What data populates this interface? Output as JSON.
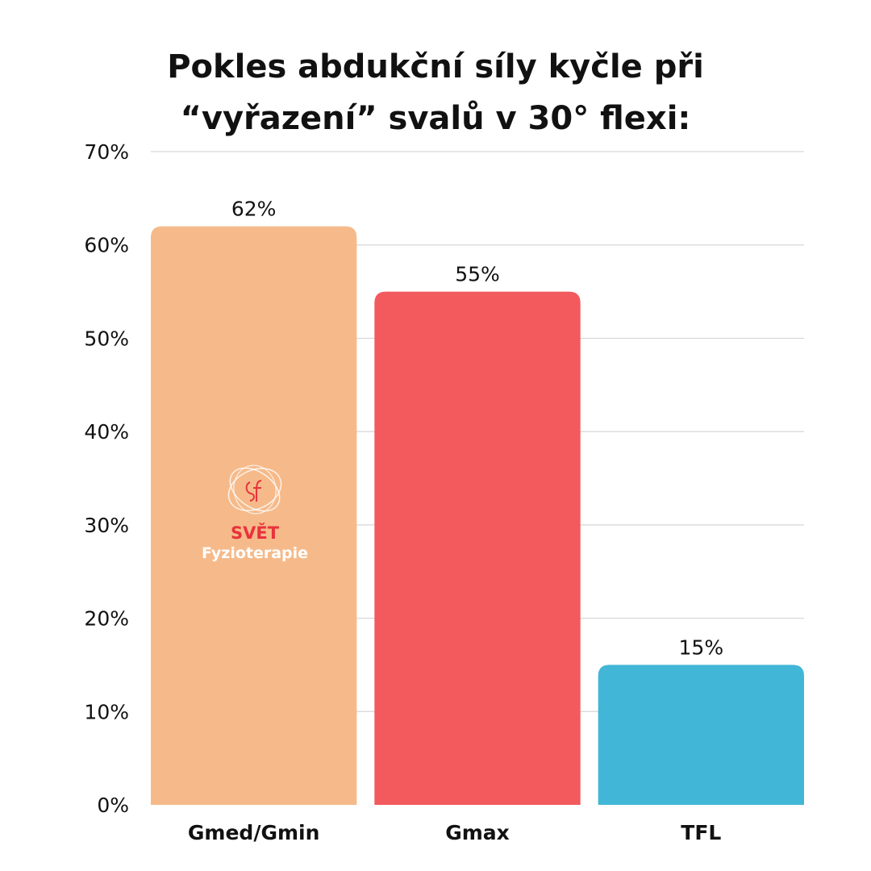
{
  "title_lines": [
    "Pokles abdukční síly kyčle při",
    "“vyřazení” svalů v 30° flexi:"
  ],
  "logo": {
    "brand": "SVĚT",
    "sub": "Fyzioterapie",
    "icon": "sf-monogram-icon"
  },
  "colors": {
    "grid": "#d6d6d6",
    "text": "#111111",
    "logo_red": "#e8323b",
    "logo_white": "#ffffff"
  },
  "chart_data": {
    "type": "bar",
    "categories": [
      "Gmed/Gmin",
      "Gmax",
      "TFL"
    ],
    "values": [
      62,
      55,
      15
    ],
    "value_labels": [
      "62%",
      "55%",
      "15%"
    ],
    "bar_colors": [
      "#f6ba8a",
      "#f25a5e",
      "#42b6d6"
    ],
    "ylim": [
      0,
      70
    ],
    "y_ticks": [
      0,
      10,
      20,
      30,
      40,
      50,
      60,
      70
    ],
    "y_tick_labels": [
      "0%",
      "10%",
      "20%",
      "30%",
      "40%",
      "50%",
      "60%",
      "70%"
    ],
    "grid": true,
    "xlabel": "",
    "ylabel": ""
  }
}
